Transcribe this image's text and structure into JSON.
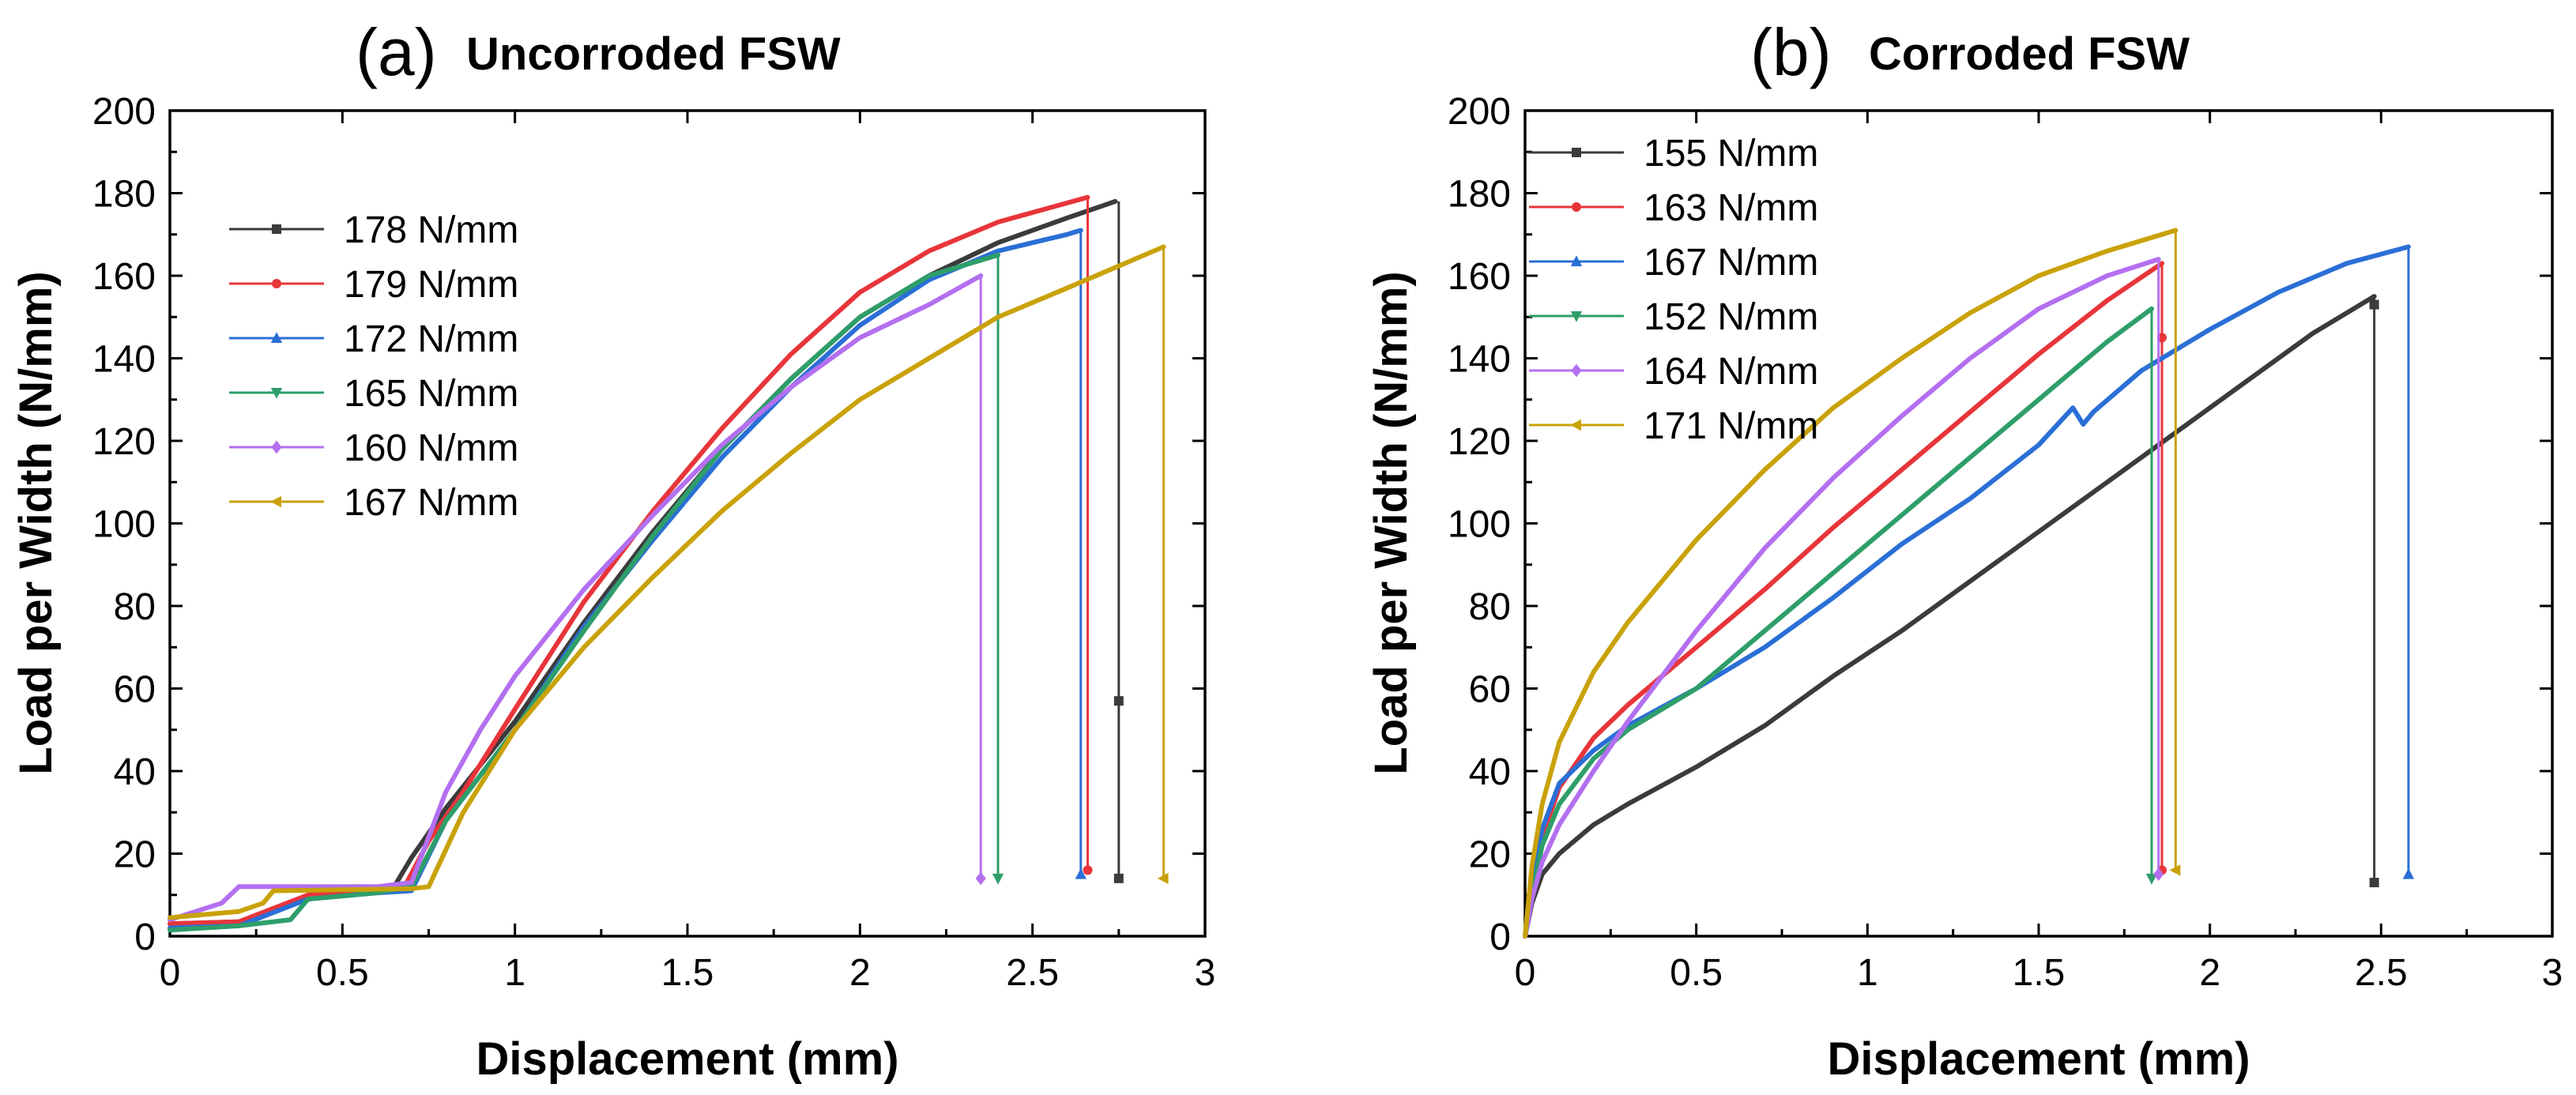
{
  "chart_data": [
    {
      "type": "line",
      "panel_letter": "(a)",
      "title": "Uncorroded FSW",
      "xlabel": "Displacement (mm)",
      "ylabel": "Load per Width (N/mm)",
      "xlim": [
        0,
        3
      ],
      "ylim": [
        0,
        200
      ],
      "xticks": [
        0,
        0.5,
        1,
        1.5,
        2,
        2.5,
        3
      ],
      "xtick_labels": [
        "0",
        "0.5",
        "1",
        "1.5",
        "2",
        "2.5",
        "3"
      ],
      "yticks": [
        0,
        20,
        40,
        60,
        80,
        100,
        120,
        140,
        160,
        180,
        200
      ],
      "ytick_labels": [
        "0",
        "20",
        "40",
        "60",
        "80",
        "100",
        "120",
        "140",
        "160",
        "180",
        "200"
      ],
      "legend_position": "upper-left",
      "series": [
        {
          "name": "178 N/mm",
          "color": "#3b3b3b",
          "marker": "square",
          "x": [
            0,
            0.2,
            0.4,
            0.6,
            0.65,
            0.7,
            0.8,
            1.0,
            1.2,
            1.4,
            1.6,
            1.8,
            2.0,
            2.2,
            2.4,
            2.6,
            2.74
          ],
          "y": [
            3,
            3.5,
            9,
            11,
            12,
            19,
            31,
            52,
            76,
            98,
            118,
            135,
            150,
            160,
            168,
            174,
            178
          ],
          "drop_x": 2.75,
          "drop_end_y": 14,
          "extra_marker": [
            2.75,
            57
          ]
        },
        {
          "name": "179 N/mm",
          "color": "#e8353a",
          "marker": "circle",
          "x": [
            0,
            0.2,
            0.4,
            0.6,
            0.68,
            0.75,
            0.85,
            1.0,
            1.2,
            1.4,
            1.6,
            1.8,
            2.0,
            2.2,
            2.4,
            2.66
          ],
          "y": [
            3,
            3.5,
            10,
            11,
            12,
            23,
            35,
            55,
            81,
            103,
            123,
            141,
            156,
            166,
            173,
            179
          ],
          "drop_x": 2.66,
          "drop_end_y": 16
        },
        {
          "name": "172 N/mm",
          "color": "#2a6fd6",
          "marker": "triangle-up",
          "x": [
            0,
            0.2,
            0.4,
            0.6,
            0.7,
            0.8,
            1.0,
            1.2,
            1.4,
            1.6,
            1.8,
            2.0,
            2.2,
            2.4,
            2.5,
            2.6,
            2.64
          ],
          "y": [
            2,
            2.5,
            9,
            10.5,
            11,
            28,
            50,
            75,
            96,
            116,
            133,
            148,
            159,
            166,
            168,
            170,
            171
          ],
          "drop_x": 2.64,
          "drop_end_y": 15
        },
        {
          "name": "165 N/mm",
          "color": "#2e9e6a",
          "marker": "triangle-down",
          "x": [
            0,
            0.2,
            0.35,
            0.4,
            0.6,
            0.7,
            0.8,
            1.0,
            1.2,
            1.4,
            1.6,
            1.8,
            2.0,
            2.2,
            2.4
          ],
          "y": [
            1.5,
            2.5,
            4,
            9,
            10.5,
            12,
            28,
            50,
            74,
            97,
            118,
            135,
            150,
            160,
            165
          ],
          "drop_x": 2.4,
          "drop_end_y": 14
        },
        {
          "name": "160 N/mm",
          "color": "#b36ff0",
          "marker": "diamond",
          "x": [
            0,
            0.15,
            0.2,
            0.6,
            0.7,
            0.8,
            0.9,
            1.0,
            1.2,
            1.4,
            1.6,
            1.8,
            2.0,
            2.2,
            2.35
          ],
          "y": [
            4,
            8,
            12,
            12,
            13,
            35,
            50,
            63,
            84,
            102,
            119,
            133,
            145,
            153,
            160
          ],
          "drop_x": 2.35,
          "drop_end_y": 14
        },
        {
          "name": "167 N/mm",
          "color": "#c9a20a",
          "marker": "triangle-left",
          "x": [
            0,
            0.2,
            0.27,
            0.3,
            0.7,
            0.75,
            0.85,
            1.0,
            1.2,
            1.4,
            1.6,
            1.8,
            2.0,
            2.2,
            2.4,
            2.6,
            2.88
          ],
          "y": [
            4.5,
            6,
            8,
            11,
            11.5,
            12,
            30,
            50,
            70,
            87,
            103,
            117,
            130,
            140,
            150,
            157,
            167
          ],
          "drop_x": 2.88,
          "drop_end_y": 14
        }
      ]
    },
    {
      "type": "line",
      "panel_letter": "(b)",
      "title": "Corroded FSW",
      "xlabel": "Displacement (mm)",
      "ylabel": "Load per Width (N/mm)",
      "xlim": [
        0,
        3
      ],
      "ylim": [
        0,
        200
      ],
      "xticks": [
        0,
        0.5,
        1,
        1.5,
        2,
        2.5,
        3
      ],
      "xtick_labels": [
        "0",
        "0.5",
        "1",
        "1.5",
        "2",
        "2.5",
        "3"
      ],
      "yticks": [
        0,
        20,
        40,
        60,
        80,
        100,
        120,
        140,
        160,
        180,
        200
      ],
      "ytick_labels": [
        "0",
        "20",
        "40",
        "60",
        "80",
        "100",
        "120",
        "140",
        "160",
        "180",
        "200"
      ],
      "legend_position": "upper-left",
      "series": [
        {
          "name": "155 N/mm",
          "color": "#3b3b3b",
          "marker": "square",
          "x": [
            0,
            0.02,
            0.05,
            0.1,
            0.2,
            0.3,
            0.5,
            0.7,
            0.9,
            1.1,
            1.3,
            1.5,
            1.7,
            1.9,
            2.1,
            2.3,
            2.48
          ],
          "y": [
            0,
            8,
            15,
            20,
            27,
            32,
            41,
            51,
            63,
            74,
            86,
            98,
            110,
            122,
            134,
            146,
            155
          ],
          "drop_x": 2.48,
          "drop_end_y": 13,
          "extra_marker": [
            2.48,
            153
          ]
        },
        {
          "name": "163 N/mm",
          "color": "#e8353a",
          "marker": "circle",
          "x": [
            0,
            0.02,
            0.05,
            0.1,
            0.2,
            0.3,
            0.5,
            0.7,
            0.9,
            1.1,
            1.3,
            1.5,
            1.7,
            1.86
          ],
          "y": [
            0,
            12,
            24,
            36,
            48,
            56,
            70,
            84,
            99,
            113,
            127,
            141,
            154,
            163
          ],
          "drop_x": 1.86,
          "drop_end_y": 16,
          "extra_marker": [
            1.86,
            145
          ]
        },
        {
          "name": "167 N/mm",
          "color": "#2a6fd6",
          "marker": "triangle-up",
          "x": [
            0,
            0.02,
            0.05,
            0.1,
            0.2,
            0.3,
            0.5,
            0.7,
            0.9,
            1.1,
            1.3,
            1.5,
            1.6,
            1.63,
            1.66,
            1.8,
            2.0,
            2.2,
            2.4,
            2.58
          ],
          "y": [
            0,
            14,
            26,
            37,
            45,
            51,
            60,
            70,
            82,
            95,
            106,
            119,
            128,
            124,
            127,
            137,
            147,
            156,
            163,
            167
          ],
          "drop_x": 2.58,
          "drop_end_y": 15
        },
        {
          "name": "152 N/mm",
          "color": "#2e9e6a",
          "marker": "triangle-down",
          "x": [
            0,
            0.02,
            0.05,
            0.1,
            0.2,
            0.3,
            0.5,
            0.7,
            0.9,
            1.1,
            1.3,
            1.5,
            1.7,
            1.83
          ],
          "y": [
            0,
            10,
            22,
            32,
            43,
            50,
            60,
            74,
            88,
            102,
            116,
            130,
            144,
            152
          ],
          "drop_x": 1.83,
          "drop_end_y": 14
        },
        {
          "name": "164 N/mm",
          "color": "#b36ff0",
          "marker": "diamond",
          "x": [
            0,
            0.02,
            0.05,
            0.1,
            0.2,
            0.3,
            0.5,
            0.7,
            0.9,
            1.1,
            1.3,
            1.5,
            1.7,
            1.85
          ],
          "y": [
            0,
            9,
            18,
            27,
            40,
            52,
            74,
            94,
            111,
            126,
            140,
            152,
            160,
            164
          ],
          "drop_x": 1.85,
          "drop_end_y": 15
        },
        {
          "name": "171 N/mm",
          "color": "#c9a20a",
          "marker": "triangle-left",
          "x": [
            0,
            0.02,
            0.05,
            0.1,
            0.2,
            0.3,
            0.5,
            0.7,
            0.9,
            1.1,
            1.3,
            1.5,
            1.7,
            1.9
          ],
          "y": [
            0,
            17,
            32,
            47,
            64,
            76,
            96,
            113,
            128,
            140,
            151,
            160,
            166,
            171
          ],
          "drop_x": 1.9,
          "drop_end_y": 16
        }
      ]
    }
  ]
}
